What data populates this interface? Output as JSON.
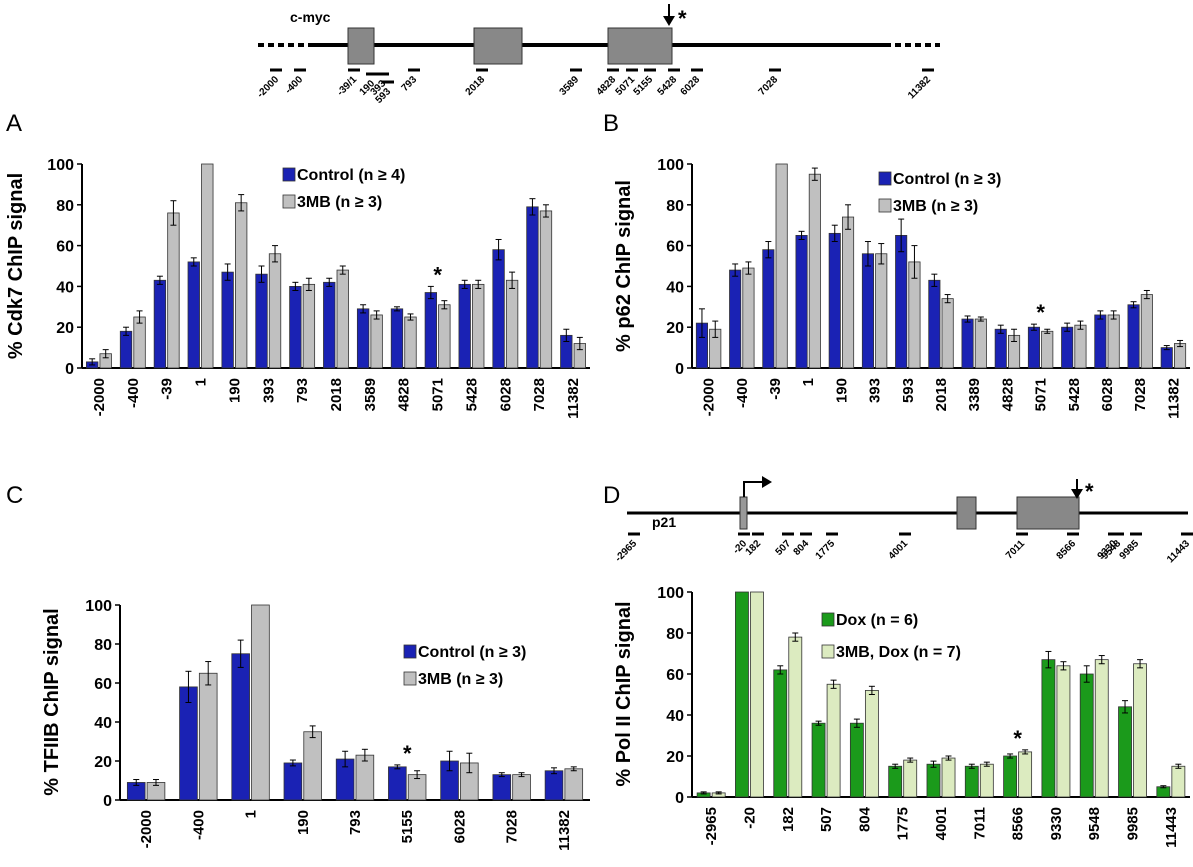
{
  "panels": {
    "A": "A",
    "B": "B",
    "C": "C",
    "D": "D"
  },
  "colors": {
    "control": "#1a22b4",
    "mb3": "#c0c0c0",
    "dox": "#1b9a1b",
    "mb3dox": "#dcebc0",
    "exon": "#888888"
  },
  "gene_maps": [
    {
      "title": "c-myc",
      "star": "*",
      "positions": [
        "-2000",
        "-400",
        "-39/1",
        "190",
        "393",
        "593",
        "793",
        "2018",
        "3589",
        "4828",
        "5071",
        "5155",
        "5428",
        "6028",
        "7028",
        "11382"
      ]
    },
    {
      "title": "p21",
      "star": "*",
      "positions": [
        "-2965",
        "-20",
        "182",
        "507",
        "804",
        "1775",
        "4001",
        "7011",
        "8566",
        "9330",
        "9548",
        "9985",
        "11443"
      ]
    }
  ],
  "chart_data": [
    {
      "panel": "A",
      "type": "bar",
      "ylabel": "% Cdk7 ChIP signal",
      "ylim": [
        0,
        100
      ],
      "yticks": [
        0,
        20,
        40,
        60,
        80,
        100
      ],
      "categories": [
        "-2000",
        "-400",
        "-39",
        "1",
        "190",
        "393",
        "793",
        "2018",
        "3589",
        "4828",
        "5071",
        "5428",
        "6028",
        "7028",
        "11382"
      ],
      "series": [
        {
          "name": "Control (n ≥ 4)",
          "values": [
            3,
            18,
            43,
            52,
            47,
            46,
            40,
            42,
            29,
            29,
            37,
            41,
            58,
            79,
            16
          ],
          "errors": [
            1.5,
            2,
            2,
            2,
            4,
            4,
            2,
            2,
            2,
            1,
            3,
            2,
            5,
            4,
            3
          ]
        },
        {
          "name": "3MB (n ≥ 3)",
          "values": [
            7,
            25,
            76,
            100,
            81,
            56,
            41,
            48,
            26,
            25,
            31,
            41,
            43,
            77,
            12
          ],
          "errors": [
            2,
            3,
            6,
            0,
            4,
            4,
            3,
            2,
            2,
            1.5,
            2,
            2,
            4,
            3,
            3
          ]
        }
      ],
      "star_index": 10,
      "legend": "top-right"
    },
    {
      "panel": "B",
      "type": "bar",
      "ylabel": "% p62 ChIP signal",
      "ylim": [
        0,
        100
      ],
      "yticks": [
        0,
        20,
        40,
        60,
        80,
        100
      ],
      "categories": [
        "-2000",
        "-400",
        "-39",
        "1",
        "190",
        "393",
        "593",
        "2018",
        "3389",
        "4828",
        "5071",
        "5428",
        "6028",
        "7028",
        "11382"
      ],
      "series": [
        {
          "name": "Control (n ≥ 3)",
          "values": [
            22,
            48,
            58,
            65,
            66,
            56,
            65,
            43,
            24,
            19,
            20,
            20,
            26,
            31,
            10
          ],
          "errors": [
            7,
            3,
            4,
            2,
            4,
            6,
            8,
            3,
            1.5,
            2,
            1.5,
            2,
            2,
            1.5,
            1
          ]
        },
        {
          "name": "3MB (n ≥ 3)",
          "values": [
            19,
            49,
            100,
            95,
            74,
            56,
            52,
            34,
            24,
            16,
            18,
            21,
            26,
            36,
            12
          ],
          "errors": [
            4,
            3,
            0,
            3,
            6,
            5,
            8,
            2,
            1,
            3,
            1,
            2,
            2,
            2,
            1.5
          ]
        }
      ],
      "star_index": 10,
      "legend": "top-right"
    },
    {
      "panel": "C",
      "type": "bar",
      "ylabel": "% TFIIB ChIP signal",
      "ylim": [
        0,
        100
      ],
      "yticks": [
        0,
        20,
        40,
        60,
        80,
        100
      ],
      "categories": [
        "-2000",
        "-400",
        "1",
        "190",
        "793",
        "5155",
        "6028",
        "7028",
        "11382"
      ],
      "series": [
        {
          "name": "Control (n ≥ 3)",
          "values": [
            9,
            58,
            75,
            19,
            21,
            17,
            20,
            13,
            15
          ],
          "errors": [
            1.5,
            8,
            7,
            1.5,
            4,
            1,
            5,
            1,
            1.5
          ]
        },
        {
          "name": "3MB (n ≥ 3)",
          "values": [
            9,
            65,
            100,
            35,
            23,
            13,
            19,
            13,
            16
          ],
          "errors": [
            1.5,
            6,
            0,
            3,
            3,
            2,
            5,
            1,
            1
          ]
        }
      ],
      "star_index": 5,
      "legend": "right"
    },
    {
      "panel": "D",
      "type": "bar",
      "ylabel": "% Pol II ChIP signal",
      "ylim": [
        0,
        100
      ],
      "yticks": [
        0,
        20,
        40,
        60,
        80,
        100
      ],
      "categories": [
        "-2965",
        "-20",
        "182",
        "507",
        "804",
        "1775",
        "4001",
        "7011",
        "8566",
        "9330",
        "9548",
        "9985",
        "11443"
      ],
      "series": [
        {
          "name": "Dox (n = 6)",
          "values": [
            2,
            100,
            62,
            36,
            36,
            15,
            16,
            15,
            20,
            67,
            60,
            44,
            5
          ],
          "errors": [
            0.5,
            0,
            2,
            1,
            2,
            1,
            1.5,
            1,
            1,
            4,
            4,
            3,
            0.5
          ]
        },
        {
          "name": "3MB, Dox (n = 7)",
          "values": [
            2,
            100,
            78,
            55,
            52,
            18,
            19,
            16,
            22,
            64,
            67,
            65,
            15
          ],
          "errors": [
            0.5,
            0,
            2,
            2,
            2,
            1,
            1,
            1,
            1,
            2,
            2,
            2,
            1
          ]
        }
      ],
      "star_index": 8,
      "legend": "top-left"
    }
  ]
}
